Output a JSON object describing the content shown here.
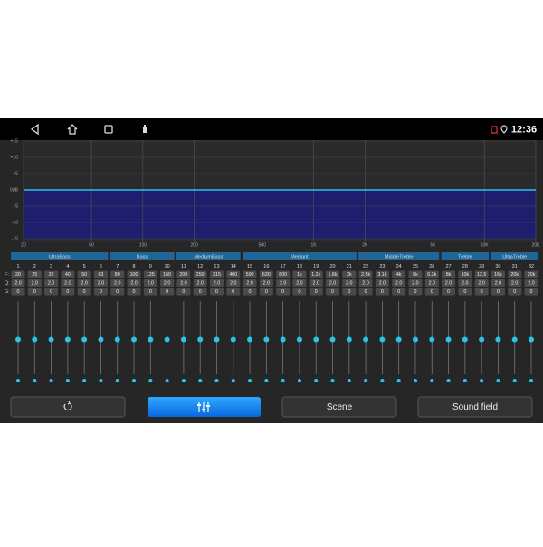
{
  "status_bar": {
    "time": "12:36"
  },
  "graph": {
    "ylim": [
      -15,
      15
    ],
    "yticks": [
      {
        "value": 15,
        "label": "+15"
      },
      {
        "value": 10,
        "label": "+10"
      },
      {
        "value": 5,
        "label": "+5"
      },
      {
        "value": 0,
        "label": "0dB"
      },
      -5,
      -10,
      -15
    ],
    "xlim": [
      20,
      20000
    ],
    "log_x": true,
    "xticks": [
      20,
      50,
      100,
      200,
      500,
      {
        "value": 1000,
        "label": "1K"
      },
      {
        "value": 2000,
        "label": "2K"
      },
      {
        "value": 5000,
        "label": "5K"
      },
      {
        "value": 10000,
        "label": "10K"
      },
      {
        "value": 20000,
        "label": "20K"
      }
    ],
    "line_color": "#29c4e8",
    "fill_color": "#1d1f6e"
  },
  "groups": [
    "UltraBass",
    "Bass",
    "MediumBass",
    "Mediant",
    "MiddleTreble",
    "Treble",
    "UltraTreble"
  ],
  "row_labels": [
    "F:",
    "Q:",
    "G:"
  ],
  "bands": [
    {
      "number": 1,
      "f": "20",
      "q": "2.0",
      "g": 0
    },
    {
      "number": 2,
      "f": "25",
      "q": "2.0",
      "g": 0
    },
    {
      "number": 3,
      "f": "32",
      "q": "2.0",
      "g": 0
    },
    {
      "number": 4,
      "f": "40",
      "q": "2.0",
      "g": 0
    },
    {
      "number": 5,
      "f": "50",
      "q": "2.0",
      "g": 0
    },
    {
      "number": 6,
      "f": "63",
      "q": "2.0",
      "g": 0
    },
    {
      "number": 7,
      "f": "80",
      "q": "2.0",
      "g": 0
    },
    {
      "number": 8,
      "f": "100",
      "q": "2.0",
      "g": 0
    },
    {
      "number": 9,
      "f": "125",
      "q": "2.0",
      "g": 0
    },
    {
      "number": 10,
      "f": "160",
      "q": "2.0",
      "g": 0
    },
    {
      "number": 11,
      "f": "200",
      "q": "2.0",
      "g": 0
    },
    {
      "number": 12,
      "f": "250",
      "q": "2.0",
      "g": 0
    },
    {
      "number": 13,
      "f": "315",
      "q": "2.0",
      "g": 0
    },
    {
      "number": 14,
      "f": "400",
      "q": "2.0",
      "g": 0
    },
    {
      "number": 15,
      "f": "500",
      "q": "2.0",
      "g": 0
    },
    {
      "number": 16,
      "f": "630",
      "q": "2.0",
      "g": 0
    },
    {
      "number": 17,
      "f": "800",
      "q": "2.0",
      "g": 0
    },
    {
      "number": 18,
      "f": "1k",
      "q": "2.0",
      "g": 0
    },
    {
      "number": 19,
      "f": "1.2k",
      "q": "2.0",
      "g": 0
    },
    {
      "number": 20,
      "f": "1.6k",
      "q": "2.0",
      "g": 0
    },
    {
      "number": 21,
      "f": "2k",
      "q": "2.0",
      "g": 0
    },
    {
      "number": 22,
      "f": "2.5k",
      "q": "2.0",
      "g": 0
    },
    {
      "number": 23,
      "f": "3.1k",
      "q": "2.0",
      "g": 0
    },
    {
      "number": 24,
      "f": "4k",
      "q": "2.0",
      "g": 0
    },
    {
      "number": 25,
      "f": "5k",
      "q": "2.0",
      "g": 0
    },
    {
      "number": 26,
      "f": "6.3k",
      "q": "2.0",
      "g": 0
    },
    {
      "number": 27,
      "f": "8k",
      "q": "2.0",
      "g": 0
    },
    {
      "number": 28,
      "f": "10k",
      "q": "2.0",
      "g": 0
    },
    {
      "number": 29,
      "f": "12.5",
      "q": "2.0",
      "g": 0
    },
    {
      "number": 30,
      "f": "16k",
      "q": "2.0",
      "g": 0
    },
    {
      "number": 31,
      "f": "20k",
      "q": "2.0",
      "g": 0
    },
    {
      "number": 32,
      "f": "20k",
      "q": "2.0",
      "g": 0
    }
  ],
  "buttons": [
    "Scene",
    "Sound field"
  ]
}
